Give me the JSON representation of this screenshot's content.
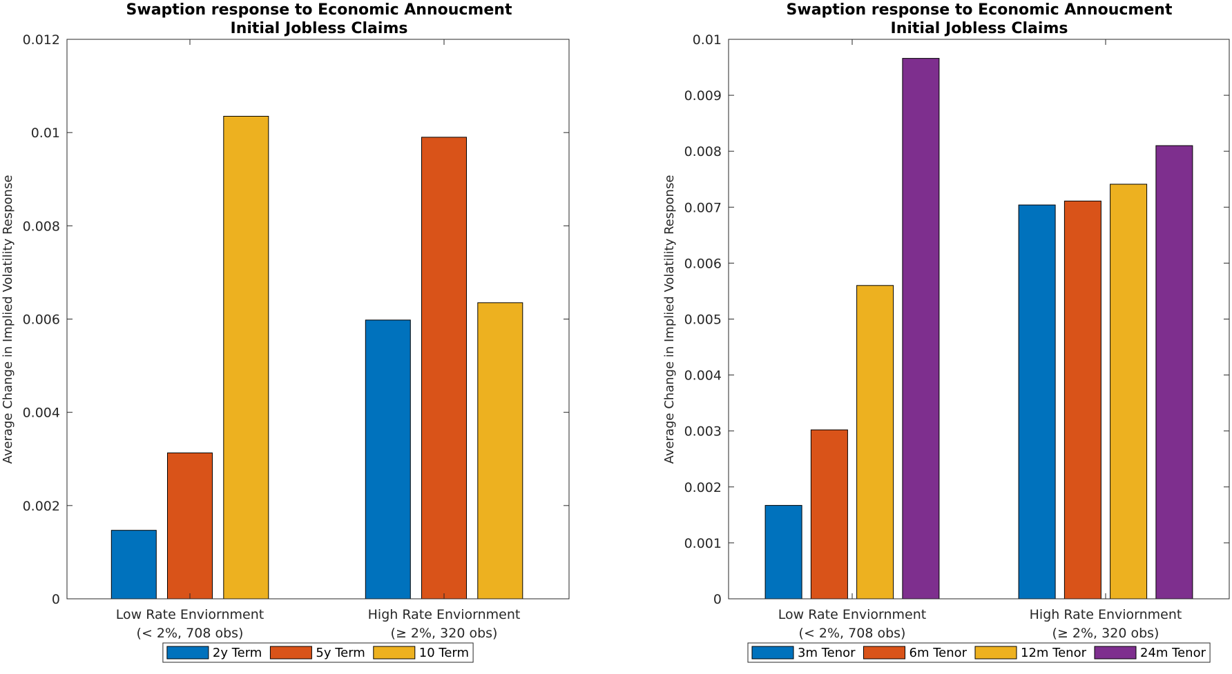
{
  "chart_data": [
    {
      "type": "bar",
      "title": "Swaption response to Economic Annoucment",
      "subtitle": "Initial Jobless Claims",
      "xlabel": "",
      "ylabel": "Average Change in Implied Volatility Response",
      "ylim": [
        0,
        0.012
      ],
      "yticks": [
        "0",
        "0.002",
        "0.004",
        "0.006",
        "0.008",
        "0.01",
        "0.012"
      ],
      "yticks_values": [
        0,
        0.002,
        0.004,
        0.006,
        0.008,
        0.01,
        0.012
      ],
      "categories": [
        [
          "Low Rate Enviornment",
          "(< 2%, 708 obs)"
        ],
        [
          "High Rate Enviornment",
          "(≥ 2%, 320 obs)"
        ]
      ],
      "series": [
        {
          "name": "2y Term",
          "color": "#0072BD",
          "values": [
            0.00147,
            0.00598
          ]
        },
        {
          "name": "5y Term",
          "color": "#D95319",
          "values": [
            0.00313,
            0.0099
          ]
        },
        {
          "name": "10 Term",
          "color": "#EDB120",
          "values": [
            0.01035,
            0.00635
          ]
        }
      ],
      "grid": false,
      "legend_position": "bottom"
    },
    {
      "type": "bar",
      "title": "Swaption response to Economic Annoucment",
      "subtitle": "Initial Jobless Claims",
      "xlabel": "",
      "ylabel": "Average Change in Implied Volatility Response",
      "ylim": [
        0,
        0.01
      ],
      "yticks": [
        "0",
        "0.001",
        "0.002",
        "0.003",
        "0.004",
        "0.005",
        "0.006",
        "0.007",
        "0.008",
        "0.009",
        "0.01"
      ],
      "yticks_values": [
        0,
        0.001,
        0.002,
        0.003,
        0.004,
        0.005,
        0.006,
        0.007,
        0.008,
        0.009,
        0.01
      ],
      "categories": [
        [
          "Low Rate Enviornment",
          "(< 2%, 708 obs)"
        ],
        [
          "High Rate Enviornment",
          "(≥ 2%, 320 obs)"
        ]
      ],
      "series": [
        {
          "name": "3m Tenor",
          "color": "#0072BD",
          "values": [
            0.00167,
            0.00704
          ]
        },
        {
          "name": "6m Tenor",
          "color": "#D95319",
          "values": [
            0.00302,
            0.00711
          ]
        },
        {
          "name": "12m Tenor",
          "color": "#EDB120",
          "values": [
            0.0056,
            0.00741
          ]
        },
        {
          "name": "24m Tenor",
          "color": "#7E2F8E",
          "values": [
            0.00966,
            0.0081
          ]
        }
      ],
      "grid": false,
      "legend_position": "bottom"
    }
  ]
}
